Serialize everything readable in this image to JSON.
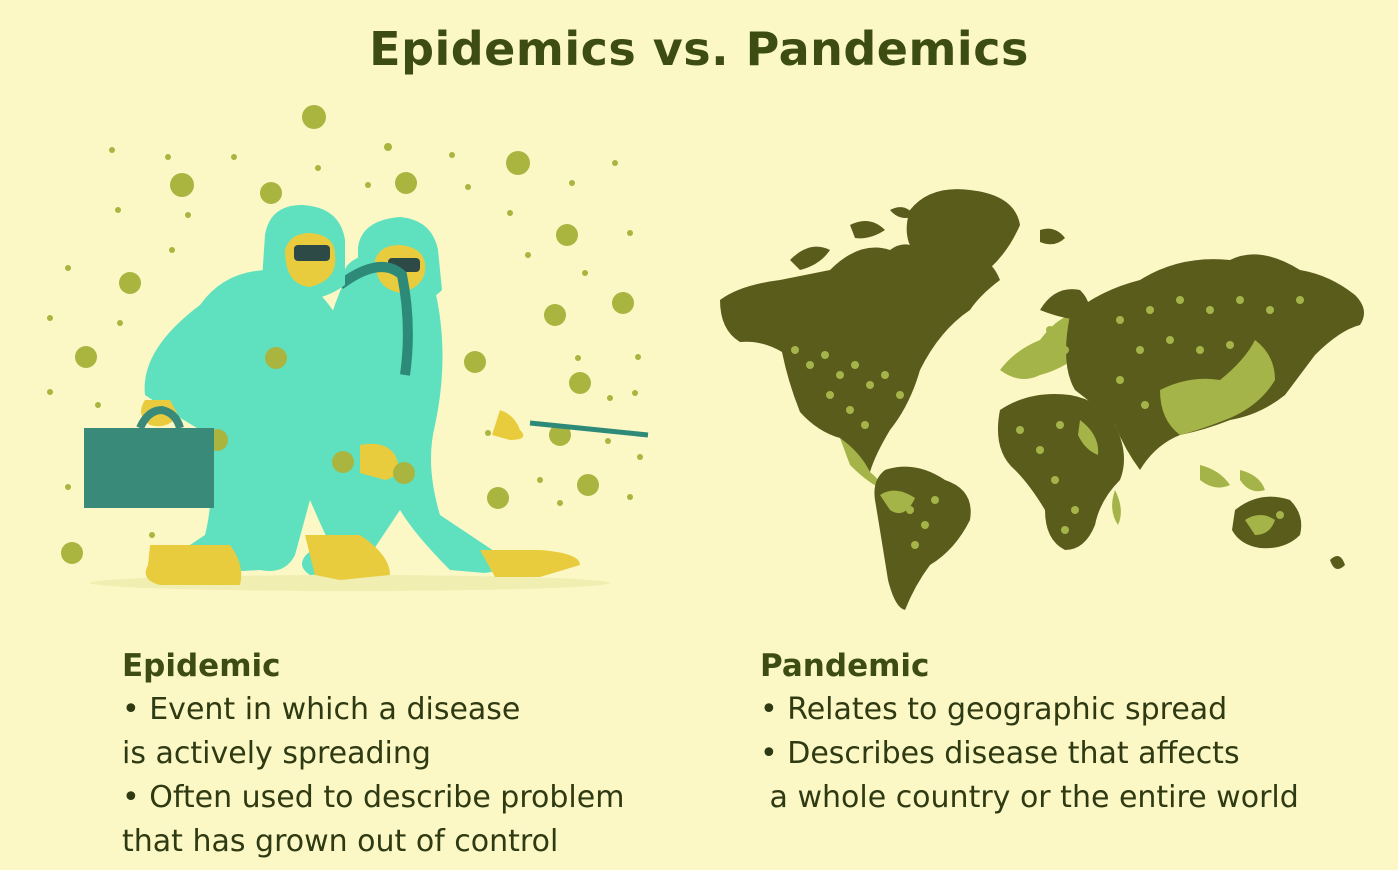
{
  "title": "Epidemics vs. Pandemics",
  "colors": {
    "background": "#fbf8c6",
    "title": "#3d4d12",
    "suit": "#5fe0bf",
    "virus": "#a9b53f",
    "map_dark": "#5a5c1c",
    "map_light": "#a4b449"
  },
  "epidemic": {
    "heading": "Epidemic",
    "lines": [
      "• Event in which a disease",
      "is actively spreading",
      "• Often used to describe problem",
      "that has grown out of control"
    ]
  },
  "pandemic": {
    "heading": "Pandemic",
    "lines": [
      "• Relates to geographic spread",
      "• Describes disease that affects",
      " a whole country or the entire world"
    ]
  }
}
